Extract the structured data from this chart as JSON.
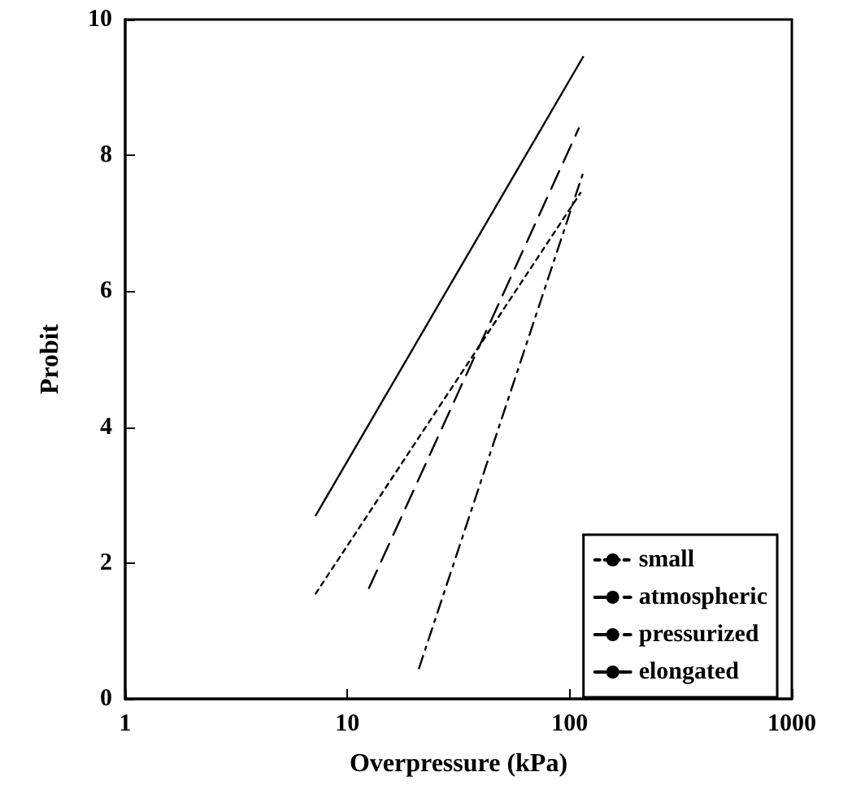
{
  "chart_data": {
    "type": "line",
    "xlabel": "Overpressure (kPa)",
    "ylabel": "Probit",
    "log": "x",
    "xlim": [
      1,
      1000
    ],
    "xticks": [
      1,
      10,
      100,
      1000
    ],
    "ylim": [
      0,
      10
    ],
    "yticks": [
      0,
      2,
      4,
      6,
      8,
      10
    ],
    "grid": false,
    "legend": "bottom right",
    "marker": "none",
    "series": [
      {
        "name": "small",
        "color": "#000000",
        "line_style": "dotted",
        "x": [
          7.2,
          112
        ],
        "values": [
          1.55,
          7.45
        ]
      },
      {
        "name": "atmospheric",
        "color": "#000000",
        "line_style": "dashed",
        "x": [
          12.5,
          110
        ],
        "values": [
          1.63,
          8.4
        ]
      },
      {
        "name": "pressurized",
        "color": "#000000",
        "line_style": "dashdot",
        "x": [
          21,
          116
        ],
        "values": [
          0.45,
          7.78
        ]
      },
      {
        "name": "elongated",
        "color": "#000000",
        "line_style": "solid",
        "x": [
          7.2,
          115
        ],
        "values": [
          2.7,
          9.45
        ]
      }
    ]
  }
}
